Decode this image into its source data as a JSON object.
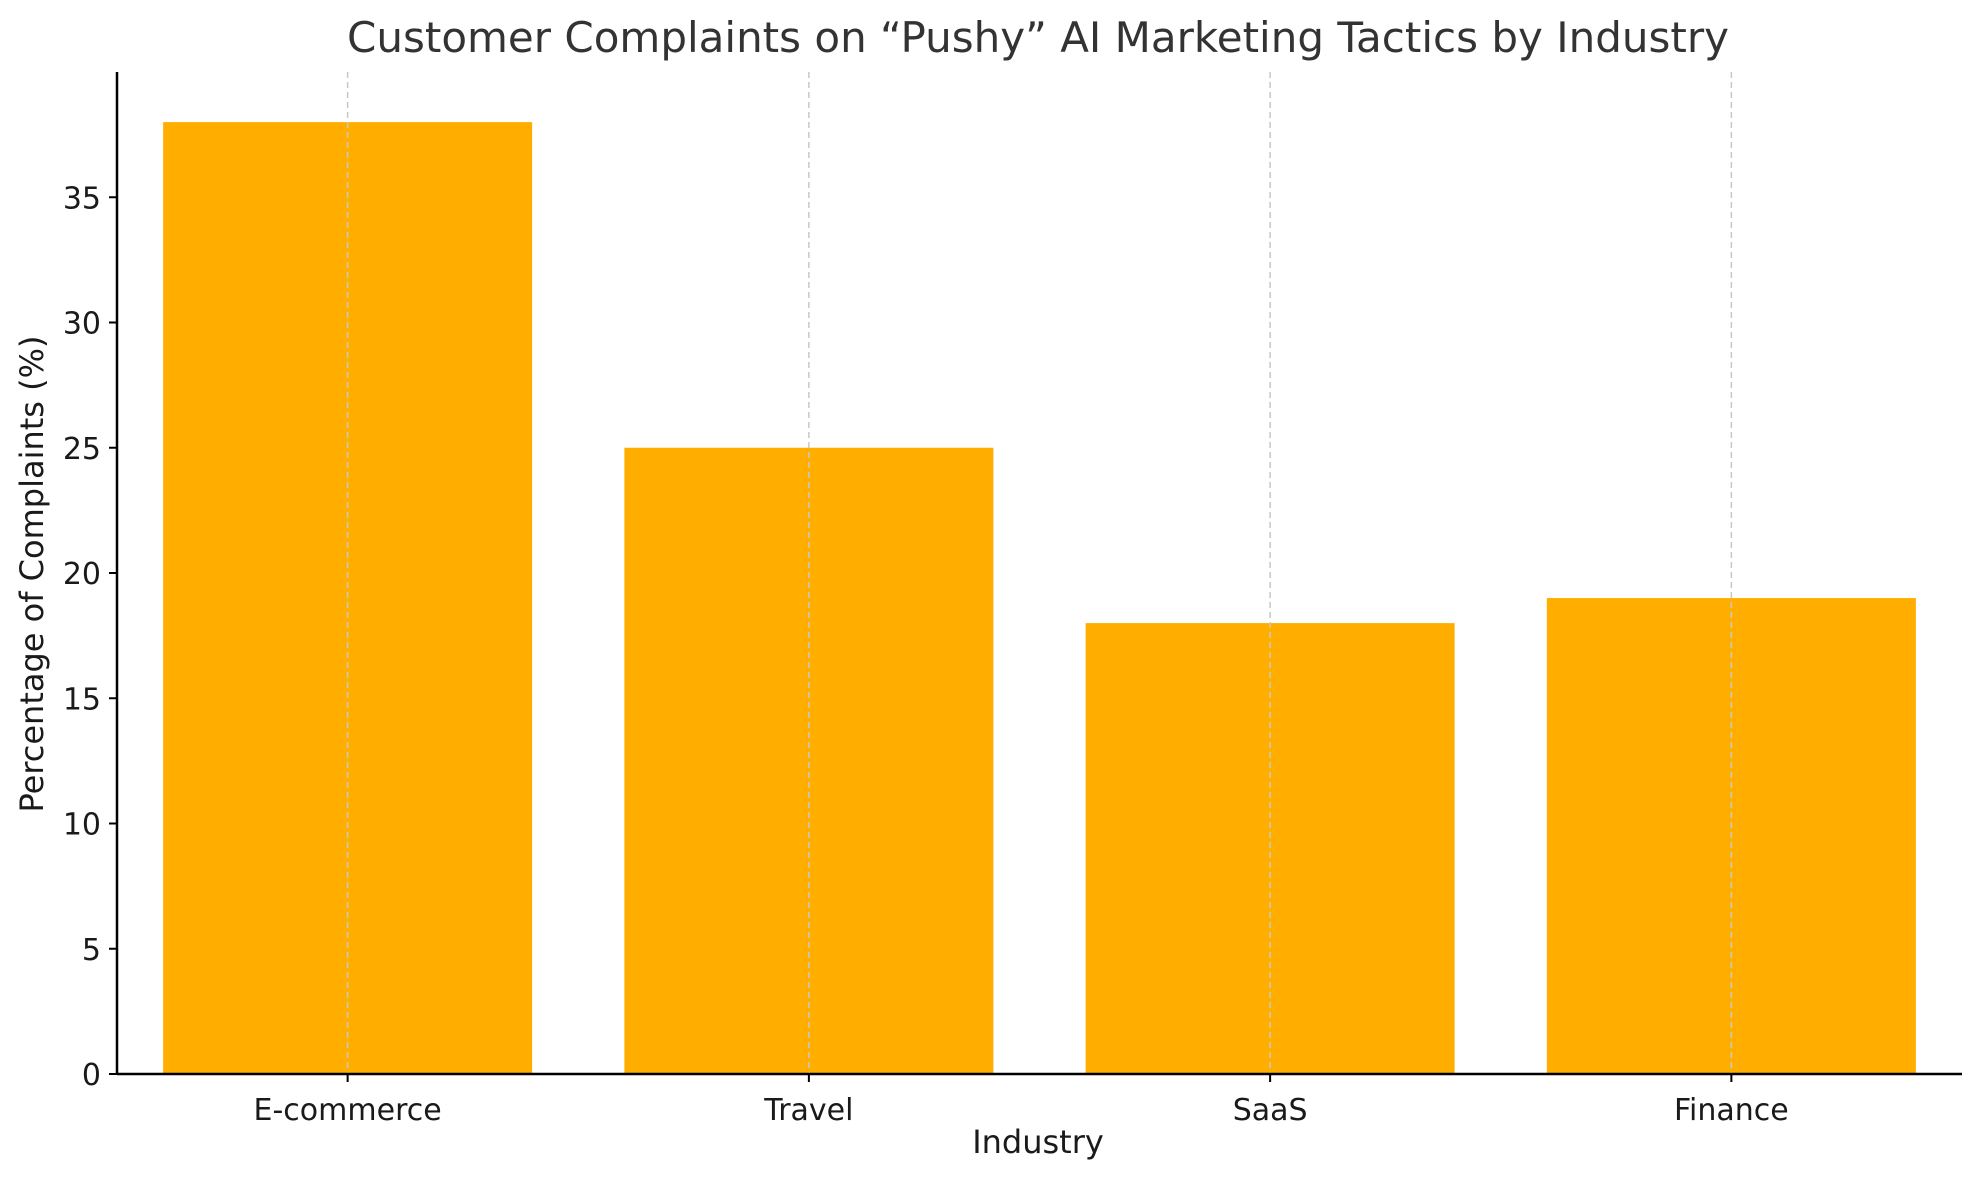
{
  "chart_data": {
    "type": "bar",
    "title": "Customer Complaints on “Pushy” AI Marketing Tactics by Industry",
    "xlabel": "Industry",
    "ylabel": "Percentage of Complaints (%)",
    "categories": [
      "E-commerce",
      "Travel",
      "SaaS",
      "Finance"
    ],
    "values": [
      38,
      25,
      18,
      19
    ],
    "ylim": [
      0,
      40
    ],
    "yticks": [
      0,
      5,
      10,
      15,
      20,
      25,
      30,
      35
    ],
    "grid": "vertical dashed",
    "legend": "none",
    "bar_color": "#FFAE00"
  }
}
